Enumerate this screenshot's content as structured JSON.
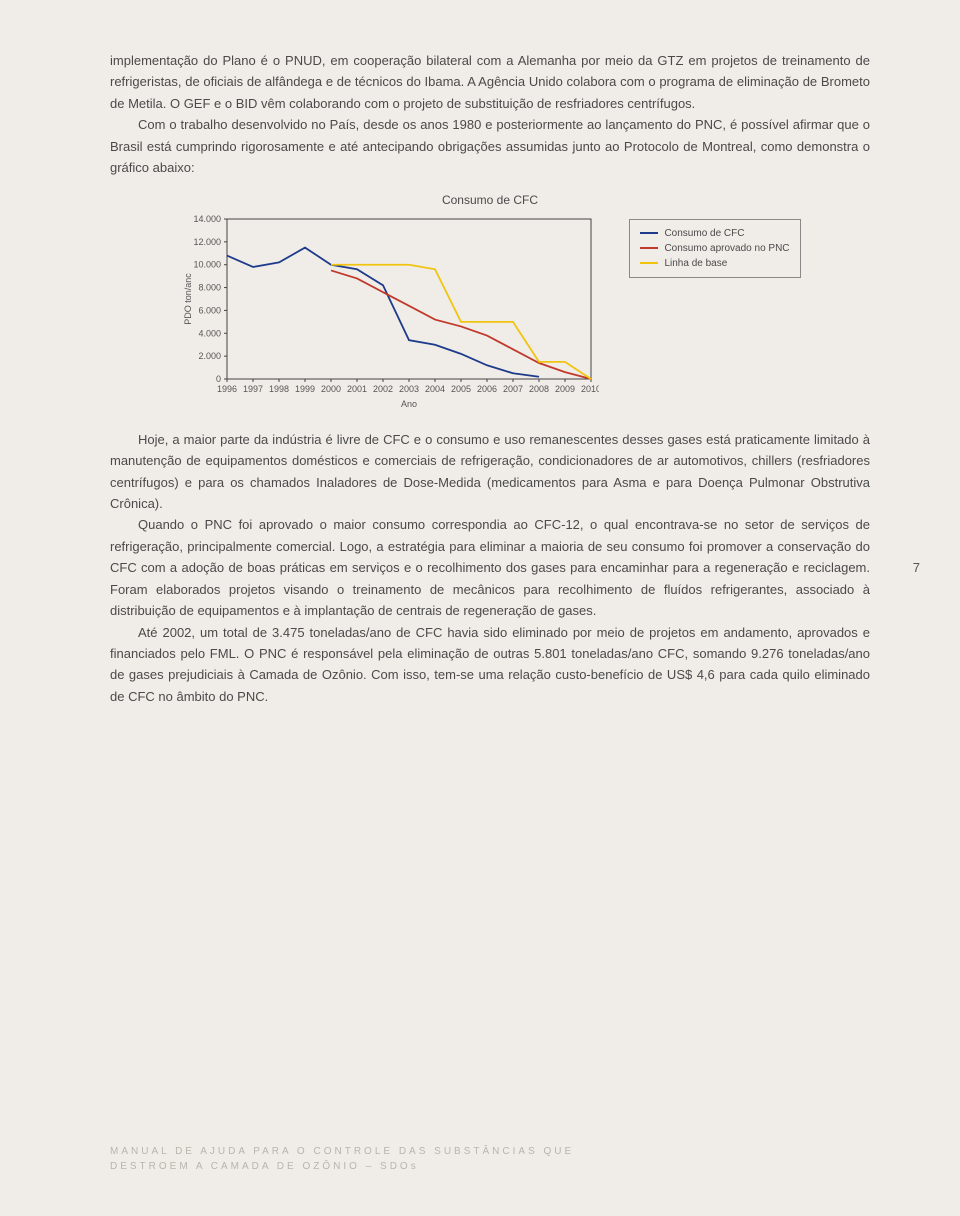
{
  "paragraphs_top": [
    "implementação do Plano é o PNUD, em cooperação bilateral com a Alemanha por meio da GTZ em projetos de treinamento de refrigeristas, de oficiais de alfândega e de técnicos do Ibama. A Agência Unido colabora com o programa de eliminação de Brometo de Metila. O GEF e o BID vêm colaborando com o projeto de substituição de resfriadores centrífugos.",
    "Com o trabalho desenvolvido no País, desde os anos 1980 e posteriormente ao lançamento do PNC, é possível afirmar que o Brasil está cumprindo rigorosamente e até antecipando obrigações assumidas junto ao Protocolo de Montreal, como demonstra o gráfico abaixo:"
  ],
  "chart": {
    "title": "Consumo de CFC",
    "ylabel": "PDO ton/anc",
    "xlabel": "Ano",
    "yticks": [
      "0",
      "2.000",
      "4.000",
      "6.000",
      "8.000",
      "10.000",
      "12.000",
      "14.000"
    ],
    "xticks": [
      "1996",
      "1997",
      "1998",
      "1999",
      "2000",
      "2001",
      "2002",
      "2003",
      "2004",
      "2005",
      "2006",
      "2007",
      "2008",
      "2009",
      "2010"
    ],
    "ylim": [
      0,
      14000
    ],
    "series": [
      {
        "name": "Consumo de CFC",
        "color": "#1e3a8a",
        "points": [
          [
            1996,
            10800
          ],
          [
            1997,
            9800
          ],
          [
            1998,
            10200
          ],
          [
            1999,
            11500
          ],
          [
            2000,
            10000
          ],
          [
            2001,
            9600
          ],
          [
            2002,
            8200
          ],
          [
            2003,
            3400
          ],
          [
            2004,
            3000
          ],
          [
            2005,
            2200
          ],
          [
            2006,
            1200
          ],
          [
            2007,
            500
          ],
          [
            2008,
            200
          ]
        ]
      },
      {
        "name": "Consumo aprovado no PNC",
        "color": "#c0392b",
        "points": [
          [
            2000,
            9500
          ],
          [
            2001,
            8800
          ],
          [
            2002,
            7600
          ],
          [
            2003,
            6400
          ],
          [
            2004,
            5200
          ],
          [
            2005,
            4600
          ],
          [
            2006,
            3800
          ],
          [
            2007,
            2600
          ],
          [
            2008,
            1400
          ],
          [
            2009,
            600
          ],
          [
            2010,
            0
          ]
        ]
      },
      {
        "name": "Linha de base",
        "color": "#f1c40f",
        "points": [
          [
            2000,
            10000
          ],
          [
            2001,
            10000
          ],
          [
            2002,
            10000
          ],
          [
            2003,
            10000
          ],
          [
            2004,
            9600
          ],
          [
            2005,
            5000
          ],
          [
            2006,
            5000
          ],
          [
            2007,
            5000
          ],
          [
            2008,
            1500
          ],
          [
            2009,
            1500
          ],
          [
            2010,
            0
          ]
        ]
      }
    ],
    "legend": [
      {
        "label": "Consumo de CFC",
        "color": "#1e3a8a"
      },
      {
        "label": "Consumo aprovado no PNC",
        "color": "#c0392b"
      },
      {
        "label": "Linha de base",
        "color": "#f1c40f"
      }
    ],
    "background": "#f0ede8",
    "axis_color": "#444",
    "line_width": 1.8
  },
  "paragraphs_bottom": [
    "Hoje, a maior parte da indústria é livre de CFC e o consumo e uso remanescentes desses gases está praticamente limitado à manutenção de equipamentos domésticos e comerciais de refrigeração, condicionadores de ar automotivos, chillers (resfriadores centrífugos) e para os chamados Inaladores de Dose-Medida (medicamentos para Asma e para Doença Pulmonar Obstrutiva Crônica).",
    "Quando o PNC foi aprovado o maior consumo correspondia ao CFC-12, o qual encontrava-se no setor de serviços de refrigeração, principalmente comercial. Logo, a estratégia para eliminar a maioria de seu consumo foi promover a conservação do CFC com a adoção de boas práticas em serviços e o recolhimento dos gases para encaminhar para a regeneração e reciclagem. Foram elaborados projetos visando o treinamento de mecânicos para recolhimento de fluídos refrigerantes, associado à distribuição de equipamentos e à implantação de centrais de regeneração de gases.",
    "Até 2002, um total de 3.475 toneladas/ano de CFC havia sido eliminado por meio de projetos em andamento, aprovados e financiados pelo FML. O PNC é responsável pela eliminação de outras 5.801 toneladas/ano CFC, somando 9.276 toneladas/ano de gases prejudiciais à Camada de Ozônio. Com isso, tem-se uma relação custo-benefício de US$ 4,6 para cada quilo eliminado de CFC no âmbito do PNC."
  ],
  "page_number": "7",
  "footer_lines": [
    "MANUAL DE AJUDA PARA O CONTROLE DAS SUBSTÂNCIAS QUE",
    "DESTROEM A CAMADA DE OZÔNIO – SDOs"
  ]
}
